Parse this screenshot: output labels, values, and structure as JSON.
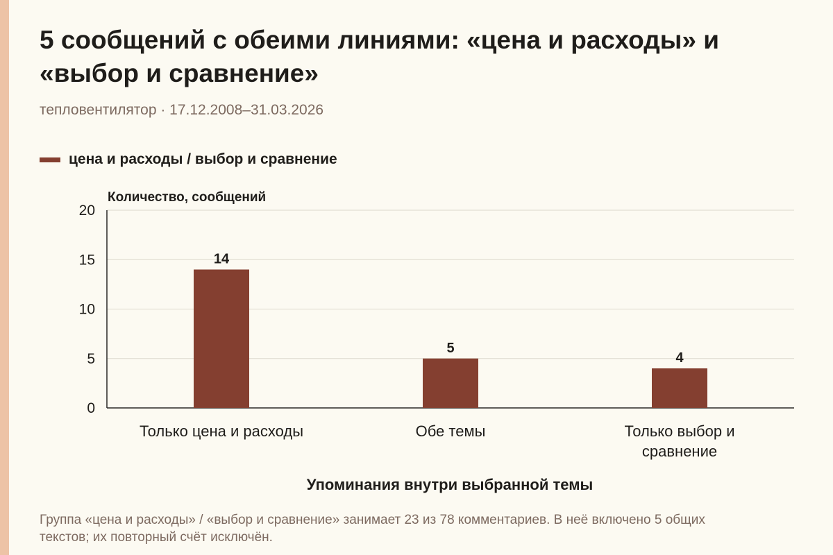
{
  "title": "5 сообщений с обеими линиями: «цена и расходы» и «выбор и сравнение»",
  "subtitle": "тепловентилятор · 17.12.2008–31.03.2026",
  "note": "Группа «цена и расходы» / «выбор и сравнение» занимает 23 из 78 комментариев. В неё включено 5 общих текстов; их повторный счёт исключён.",
  "colors": {
    "background": "#fcfaf2",
    "accent_strip": "#edc3a6",
    "bar": "#843f30",
    "text": "#1f1d1a",
    "muted_text": "#7d6a60",
    "grid": "#dcd8cc",
    "axis": "#2a2826"
  },
  "chart_data": {
    "type": "bar",
    "title": "5 сообщений с обеими линиями: «цена и расходы» и «выбор и сравнение»",
    "categories": [
      [
        "Только цена и расходы"
      ],
      [
        "Обе темы"
      ],
      [
        "Только выбор и",
        "сравнение"
      ]
    ],
    "series": [
      {
        "name": "цена и расходы / выбор и сравнение",
        "values": [
          14,
          5,
          4
        ]
      }
    ],
    "data_labels": [
      "14",
      "5",
      "4"
    ],
    "xlabel": "Упоминания внутри выбранной темы",
    "ylabel": "Количество, сообщений",
    "ylim": [
      0,
      20
    ],
    "yticks": [
      0,
      5,
      10,
      15,
      20
    ],
    "grid": true,
    "legend_position": "top-left"
  }
}
